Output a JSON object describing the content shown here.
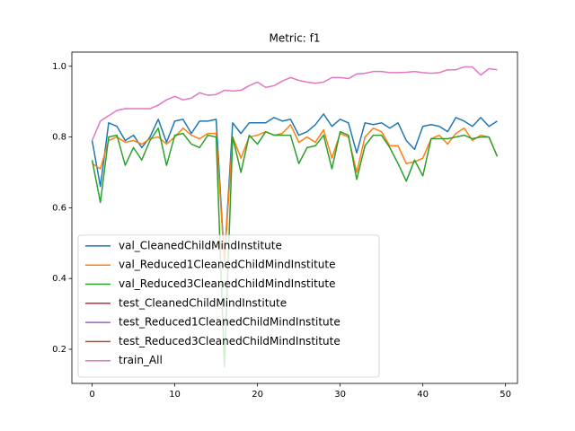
{
  "chart_data": {
    "type": "line",
    "title": "Metric: f1",
    "x": [
      0,
      1,
      2,
      3,
      4,
      5,
      6,
      7,
      8,
      9,
      10,
      11,
      12,
      13,
      14,
      15,
      16,
      17,
      18,
      19,
      20,
      21,
      22,
      23,
      24,
      25,
      26,
      27,
      28,
      29,
      30,
      31,
      32,
      33,
      34,
      35,
      36,
      37,
      38,
      39,
      40,
      41,
      42,
      43,
      44,
      45,
      46,
      47,
      48,
      49
    ],
    "xlim": [
      -2.45,
      51.45
    ],
    "xticks": [
      0,
      10,
      20,
      30,
      40,
      50
    ],
    "ylim": [
      0.1035,
      1.04
    ],
    "yticks": [
      0.2,
      0.4,
      0.6,
      0.8,
      {
        "value": 1.0,
        "label": "1.0"
      }
    ],
    "legend": "lower left",
    "series": [
      {
        "name": "val_CleanedChildMindInstitute",
        "color": "#1f77b4",
        "values": [
          0.79,
          0.66,
          0.84,
          0.83,
          0.79,
          0.805,
          0.77,
          0.8,
          0.85,
          0.785,
          0.845,
          0.85,
          0.81,
          0.845,
          0.845,
          0.85,
          0.45,
          0.84,
          0.81,
          0.84,
          0.84,
          0.84,
          0.855,
          0.845,
          0.85,
          0.805,
          0.815,
          0.835,
          0.865,
          0.83,
          0.85,
          0.84,
          0.755,
          0.84,
          0.835,
          0.84,
          0.825,
          0.84,
          0.79,
          0.765,
          0.83,
          0.835,
          0.83,
          0.815,
          0.855,
          0.845,
          0.83,
          0.855,
          0.83,
          0.845
        ]
      },
      {
        "name": "val_Reduced1CleanedChildMindInstitute",
        "color": "#ff7f0e",
        "values": [
          0.725,
          0.71,
          0.79,
          0.8,
          0.785,
          0.79,
          0.78,
          0.795,
          0.8,
          0.78,
          0.8,
          0.825,
          0.805,
          0.795,
          0.81,
          0.81,
          0.45,
          0.8,
          0.74,
          0.8,
          0.805,
          0.815,
          0.805,
          0.81,
          0.835,
          0.785,
          0.8,
          0.785,
          0.82,
          0.74,
          0.81,
          0.8,
          0.7,
          0.8,
          0.825,
          0.815,
          0.775,
          0.775,
          0.725,
          0.73,
          0.74,
          0.795,
          0.805,
          0.78,
          0.81,
          0.825,
          0.79,
          0.805,
          0.8,
          0.745
        ]
      },
      {
        "name": "val_Reduced3CleanedChildMindInstitute",
        "color": "#2ca02c",
        "values": [
          0.735,
          0.615,
          0.8,
          0.805,
          0.72,
          0.77,
          0.735,
          0.79,
          0.825,
          0.72,
          0.805,
          0.81,
          0.78,
          0.77,
          0.805,
          0.8,
          0.15,
          0.8,
          0.7,
          0.805,
          0.78,
          0.815,
          0.805,
          0.805,
          0.805,
          0.725,
          0.77,
          0.775,
          0.805,
          0.71,
          0.815,
          0.805,
          0.68,
          0.775,
          0.805,
          0.805,
          0.77,
          0.725,
          0.675,
          0.735,
          0.69,
          0.795,
          0.795,
          0.795,
          0.8,
          0.805,
          0.795,
          0.8,
          0.8,
          0.745
        ]
      },
      {
        "name": "test_CleanedChildMindInstitute",
        "color": "#d62728",
        "values": [
          null,
          null,
          null,
          null,
          null,
          null,
          null,
          null,
          null,
          null,
          null,
          null,
          null,
          null,
          null,
          null,
          null,
          null,
          null,
          null,
          null,
          null,
          null,
          null,
          null,
          null,
          null,
          null,
          null,
          null,
          null,
          null,
          null,
          null,
          null,
          null,
          null,
          null,
          null,
          null,
          null,
          null,
          null,
          null,
          null,
          null,
          null,
          null,
          null,
          null
        ]
      },
      {
        "name": "test_Reduced1CleanedChildMindInstitute",
        "color": "#9467bd",
        "values": [
          null,
          null,
          null,
          null,
          null,
          null,
          null,
          null,
          null,
          null,
          null,
          null,
          null,
          null,
          null,
          null,
          null,
          null,
          null,
          null,
          null,
          null,
          null,
          null,
          null,
          null,
          null,
          null,
          null,
          null,
          null,
          null,
          null,
          null,
          null,
          null,
          null,
          null,
          null,
          null,
          null,
          null,
          null,
          null,
          null,
          null,
          null,
          null,
          null,
          null
        ]
      },
      {
        "name": "test_Reduced3CleanedChildMindInstitute",
        "color": "#8c564b",
        "values": [
          null,
          null,
          null,
          null,
          null,
          null,
          null,
          null,
          null,
          null,
          null,
          null,
          null,
          null,
          null,
          null,
          null,
          null,
          null,
          null,
          null,
          null,
          null,
          null,
          null,
          null,
          null,
          null,
          null,
          null,
          null,
          null,
          null,
          null,
          null,
          null,
          null,
          null,
          null,
          null,
          null,
          null,
          null,
          null,
          null,
          null,
          null,
          null,
          null,
          null
        ]
      },
      {
        "name": "train_All",
        "color": "#e377c2",
        "values": [
          0.79,
          0.845,
          0.86,
          0.875,
          0.88,
          0.88,
          0.88,
          0.88,
          0.89,
          0.905,
          0.915,
          0.905,
          0.91,
          0.925,
          0.918,
          0.92,
          0.932,
          0.93,
          0.932,
          0.945,
          0.955,
          0.94,
          0.945,
          0.958,
          0.968,
          0.96,
          0.955,
          0.952,
          0.955,
          0.968,
          0.968,
          0.965,
          0.978,
          0.98,
          0.985,
          0.985,
          0.982,
          0.982,
          0.983,
          0.985,
          0.982,
          0.98,
          0.982,
          0.99,
          0.99,
          0.998,
          0.998,
          0.975,
          0.993,
          0.99
        ]
      }
    ]
  }
}
